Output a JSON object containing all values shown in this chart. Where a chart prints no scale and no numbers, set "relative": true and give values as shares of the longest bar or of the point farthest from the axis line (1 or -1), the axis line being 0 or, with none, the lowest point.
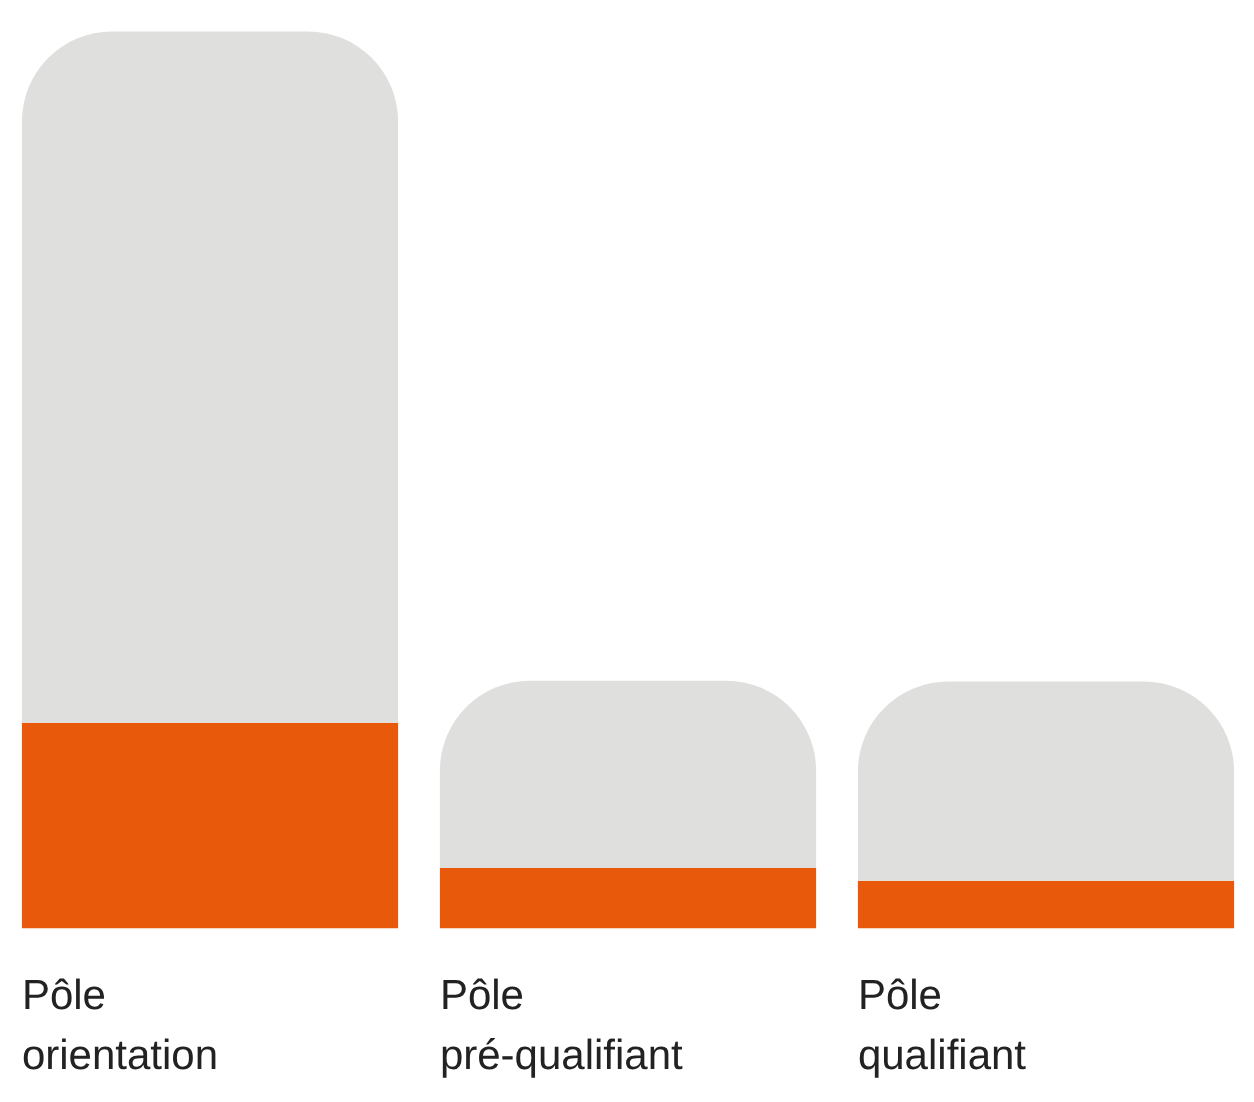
{
  "chart_data": {
    "type": "bar",
    "relative": true,
    "stacked": true,
    "categories": [
      "Pôle orientation",
      "Pôle pré-qualifiant",
      "Pôle qualifiant"
    ],
    "series": [
      {
        "color": "#e8590c",
        "values": [
          0.229,
          0.067,
          0.053
        ]
      },
      {
        "color": "#dfe0de",
        "values": [
          0.771,
          0.209,
          0.222
        ]
      }
    ]
  }
}
